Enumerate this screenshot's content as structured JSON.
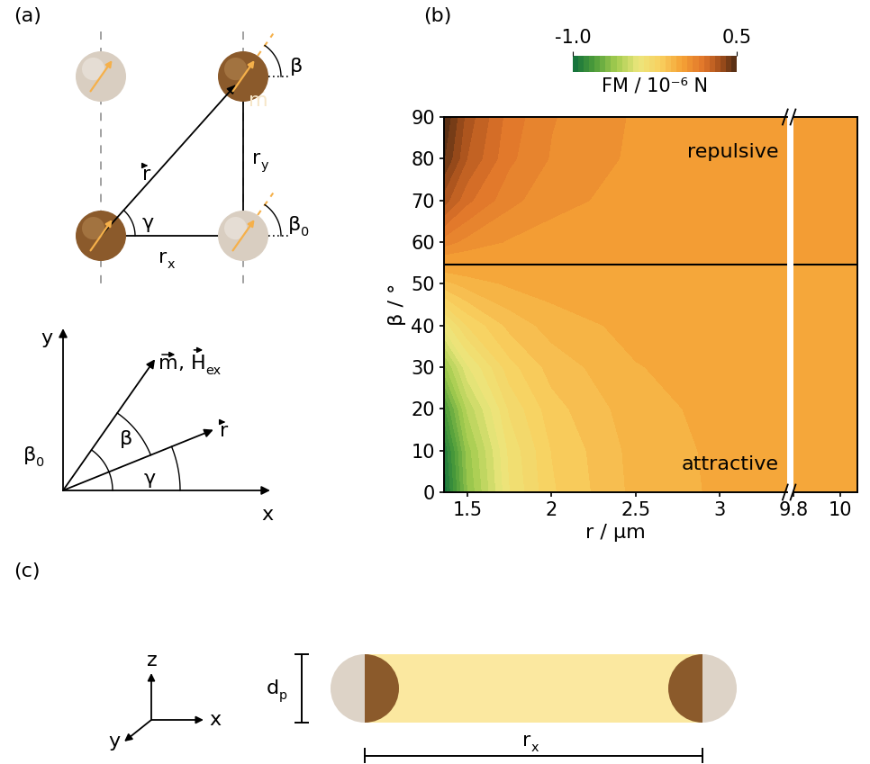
{
  "panel_labels": [
    "(a)",
    "(b)",
    "(c)"
  ],
  "diagram_a": {
    "lattice_labels": {
      "m": [
        {
          "text": "m",
          "vector": true
        }
      ],
      "beta": [
        {
          "text": "β"
        }
      ],
      "r": [
        {
          "text": "r",
          "vector": true
        }
      ],
      "r_y": [
        {
          "text": "r",
          "sub": "y"
        }
      ],
      "gamma": [
        {
          "text": "γ"
        }
      ],
      "r_x": [
        {
          "text": "r",
          "sub": "x"
        }
      ],
      "beta0": [
        {
          "text": "β",
          "sub": "0"
        }
      ]
    },
    "frame_labels": {
      "y": [
        {
          "text": "y"
        }
      ],
      "x": [
        {
          "text": "x"
        }
      ],
      "m_h": [
        {
          "text": "m",
          "vector": true
        },
        {
          "text": ", "
        },
        {
          "text": "H",
          "vector": true,
          "sub": "ex"
        }
      ],
      "beta": [
        {
          "text": "β"
        }
      ],
      "beta0": [
        {
          "text": "β",
          "sub": "0"
        }
      ],
      "gamma": [
        {
          "text": "γ"
        }
      ],
      "r": [
        {
          "text": "r",
          "vector": true
        }
      ]
    }
  },
  "chart_data": {
    "type": "contour",
    "xlabel": "r / µm",
    "ylabel": "β / °",
    "xlim": [
      1.36,
      3.4
    ],
    "xticks": [
      1.5,
      2,
      2.5,
      3
    ],
    "ylim": [
      0,
      90
    ],
    "yticks": [
      0,
      10,
      20,
      30,
      40,
      50,
      60,
      70,
      80,
      90
    ],
    "x": [
      1.36,
      1.5,
      1.75,
      2,
      2.5,
      3,
      3.4
    ],
    "y": [
      0,
      10,
      20,
      30,
      40,
      50,
      60,
      70,
      80,
      90
    ],
    "z": [
      [
        -1.0,
        -0.656,
        -0.354,
        -0.208,
        -0.085,
        -0.041,
        -0.026
      ],
      [
        -0.955,
        -0.627,
        -0.338,
        -0.199,
        -0.081,
        -0.039,
        -0.025
      ],
      [
        -0.824,
        -0.541,
        -0.292,
        -0.171,
        -0.07,
        -0.034,
        -0.021
      ],
      [
        -0.625,
        -0.41,
        -0.221,
        -0.13,
        -0.053,
        -0.026,
        -0.016
      ],
      [
        -0.38,
        -0.249,
        -0.135,
        -0.079,
        -0.032,
        -0.016,
        -0.01
      ],
      [
        -0.12,
        -0.079,
        -0.042,
        -0.025,
        -0.01,
        -0.005,
        -0.003
      ],
      [
        0.125,
        0.082,
        0.044,
        0.026,
        0.011,
        0.005,
        0.003
      ],
      [
        0.325,
        0.213,
        0.115,
        0.068,
        0.028,
        0.013,
        0.009
      ],
      [
        0.455,
        0.298,
        0.161,
        0.095,
        0.039,
        0.019,
        0.012
      ],
      [
        0.5,
        0.328,
        0.177,
        0.104,
        0.043,
        0.021,
        0.013
      ]
    ],
    "break": {
      "xlim": [
        9.8,
        10.07
      ],
      "xticks": [
        9.8,
        10
      ],
      "x": [
        9.8,
        10.07
      ],
      "z": [
        [
          -0.0004,
          -0.0004
        ],
        [
          -0.0004,
          -0.0003
        ],
        [
          -0.0003,
          -0.0003
        ],
        [
          -0.0002,
          -0.0002
        ],
        [
          -0.0001,
          -0.0001
        ],
        [
          -4e-05,
          -4e-05
        ],
        [
          4e-05,
          4e-05
        ],
        [
          0.0001,
          0.0001
        ],
        [
          0.0002,
          0.0002
        ],
        [
          0.0002,
          0.0002
        ]
      ]
    },
    "boundary_line": 54.7,
    "annotations": [
      "repulsive",
      "attractive"
    ],
    "colorbar": {
      "label": "FM / 10⁻⁶ N",
      "range": [
        -1.0,
        0.5
      ],
      "ticks": [
        -1.0,
        0.5
      ]
    }
  },
  "diagram_c": {
    "axes_labels": {
      "z": [
        {
          "text": "z"
        }
      ],
      "y": [
        {
          "text": "y"
        }
      ],
      "x": [
        {
          "text": "x"
        }
      ]
    },
    "d_p": [
      {
        "text": "d",
        "sub": "p"
      }
    ],
    "r_x": [
      {
        "text": "r",
        "sub": "x"
      }
    ]
  }
}
